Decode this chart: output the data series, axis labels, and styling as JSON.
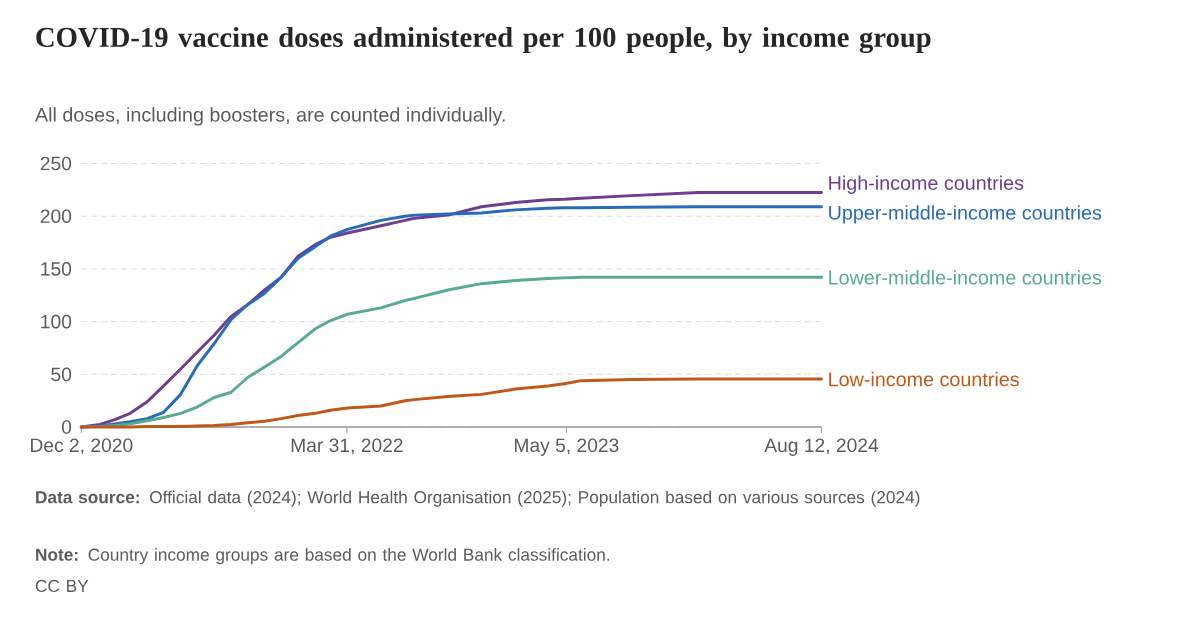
{
  "chart_data": {
    "type": "line",
    "title": "COVID-19 vaccine doses administered per 100 people, by income group",
    "subtitle": "All doses, including boosters, are counted individually.",
    "x": [
      "2020-12-02",
      "2021-01-05",
      "2021-02-01",
      "2021-03-01",
      "2021-04-01",
      "2021-05-01",
      "2021-06-01",
      "2021-07-01",
      "2021-08-01",
      "2021-09-01",
      "2021-10-01",
      "2021-11-01",
      "2021-12-01",
      "2022-01-01",
      "2022-02-01",
      "2022-03-01",
      "2022-04-01",
      "2022-06-01",
      "2022-07-15",
      "2022-08-01",
      "2022-10-01",
      "2022-12-01",
      "2023-02-01",
      "2023-04-01",
      "2023-05-01",
      "2023-06-01",
      "2023-09-01",
      "2024-01-01",
      "2024-04-01",
      "2024-08-12"
    ],
    "series": [
      {
        "name": "High-income countries",
        "color": "#6d3e91",
        "values": [
          0,
          2.5,
          7,
          13,
          24,
          39,
          55,
          71,
          87,
          105,
          116,
          130,
          142,
          162,
          173,
          180,
          184,
          191,
          196,
          198,
          201,
          209,
          213,
          215.5,
          216,
          217,
          219.5,
          222.5,
          222.5,
          222.5
        ]
      },
      {
        "name": "Upper-middle-income countries",
        "color": "#286bbb",
        "values": [
          0,
          1,
          3,
          5,
          8,
          14,
          31,
          58,
          79,
          102,
          116,
          127,
          142,
          160,
          171,
          181,
          187.5,
          196,
          200,
          201,
          202,
          203,
          206,
          207.5,
          208,
          208,
          208.5,
          209,
          209,
          209
        ]
      },
      {
        "name": "Lower-middle-income countries",
        "color": "#58ac8c",
        "values": [
          0,
          0.5,
          1.5,
          3,
          6,
          9,
          13,
          19,
          28,
          33,
          47,
          57,
          67,
          80,
          93,
          101,
          107,
          113,
          120,
          122,
          130,
          136,
          139,
          141,
          141.5,
          142,
          142,
          142,
          142,
          142
        ]
      },
      {
        "name": "Low-income countries",
        "color": "#c05917",
        "values": [
          0,
          0,
          0,
          0,
          0.5,
          0.5,
          0.5,
          1,
          1.5,
          2.5,
          4,
          5.5,
          8,
          11,
          13,
          16,
          18,
          20,
          25,
          26,
          29,
          31,
          36,
          39,
          41,
          44,
          45,
          45.5,
          45.5,
          45.5
        ]
      }
    ],
    "xlim": [
      "2020-12-02",
      "2024-08-12"
    ],
    "xticks": [
      {
        "value": "2020-12-02",
        "label": "Dec 2, 2020"
      },
      {
        "value": "2022-03-31",
        "label": "Mar 31, 2022"
      },
      {
        "value": "2023-05-05",
        "label": "May 5, 2023"
      },
      {
        "value": "2024-08-12",
        "label": "Aug 12, 2024"
      }
    ],
    "ylim": [
      0,
      250
    ],
    "yticks": [
      0,
      50,
      100,
      150,
      200,
      250
    ],
    "grid": "y",
    "annotations": [
      "**Data source:** Official data (2024); World Health Organisation (2025); Population based on various sources (2024)",
      "**Note:** Country income groups are based on the World Bank classification.",
      "CC BY"
    ]
  }
}
